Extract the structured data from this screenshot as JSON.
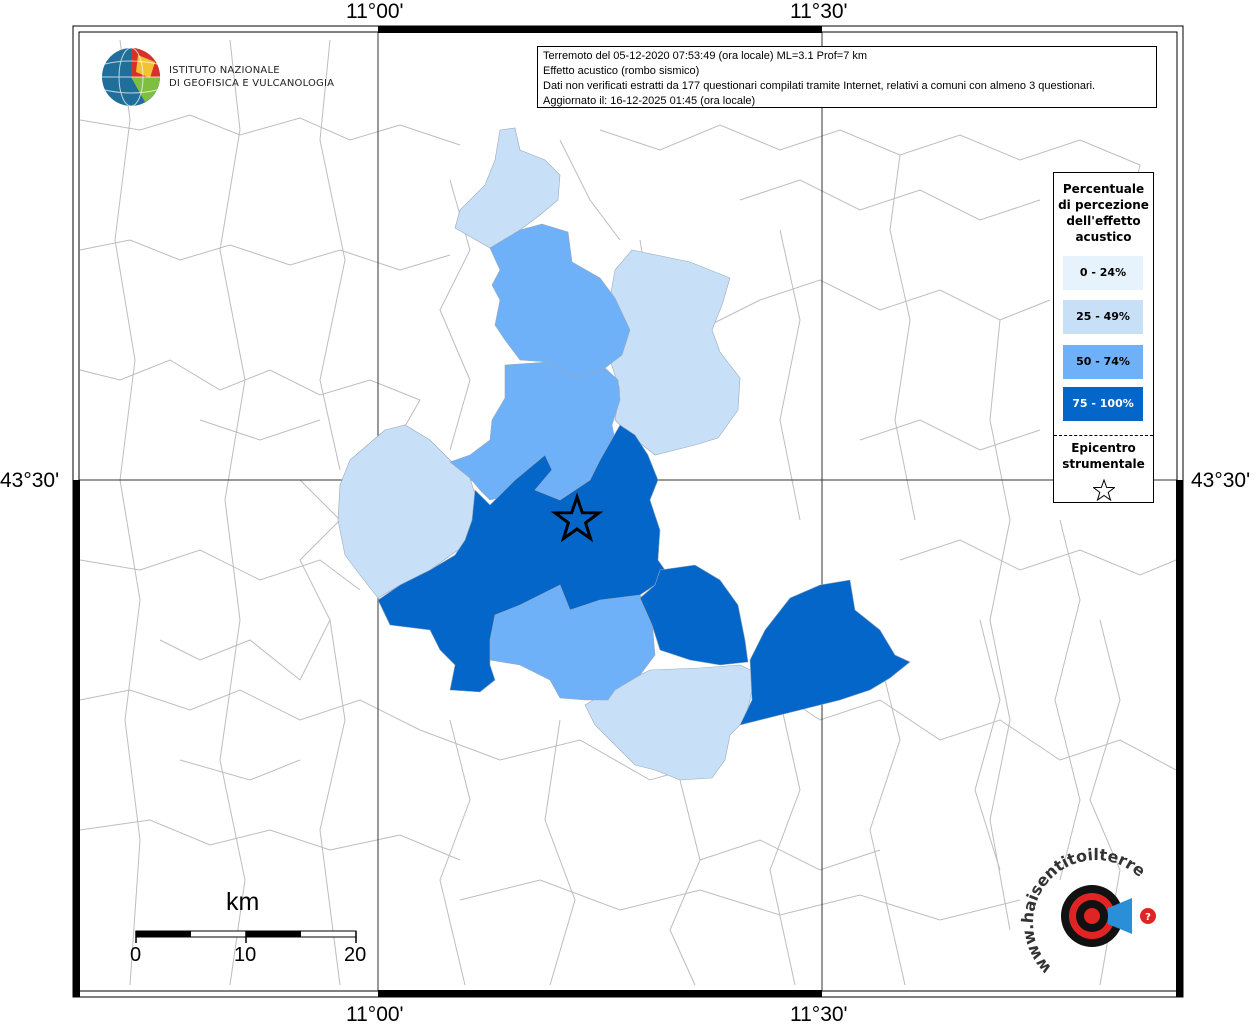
{
  "header": {
    "lines": [
      "Terremoto del 05-12-2020 07:53:49 (ora locale) ML=3.1 Prof=7 km",
      "Effetto acustico (rombo sismico)",
      "Dati non verificati estratti da 177 questionari compilati tramite Internet, relativi a comuni con almeno 3 questionari.",
      "Aggiornato il: 16-12-2025 01:45 (ora locale)"
    ]
  },
  "logo_ingv": {
    "line1": "ISTITUTO NAZIONALE",
    "line2": "DI GEOFISICA E VULCANOLOGIA"
  },
  "logo_haisentito": {
    "text": "haisentitoilterremoto.it",
    "prefix": "www."
  },
  "grid": {
    "lon_labels": [
      "11°00'",
      "11°30'"
    ],
    "lat_labels": [
      "43°30'"
    ]
  },
  "legend": {
    "title": [
      "Percentuale",
      "di percezione",
      "dell'effetto",
      "acustico"
    ],
    "classes": [
      {
        "label": "0 - 24%",
        "color": "#e6f2fc"
      },
      {
        "label": "25 - 49%",
        "color": "#c7e0f8"
      },
      {
        "label": "50 - 74%",
        "color": "#6eb1f8"
      },
      {
        "label": "75 - 100%",
        "color": "#0566c9"
      }
    ],
    "epicenter_label": [
      "Epicentro",
      "strumentale"
    ],
    "epicenter_icon": "star-outline-icon"
  },
  "scale_bar": {
    "unit": "km",
    "ticks": [
      "0",
      "10",
      "20"
    ]
  },
  "colors": {
    "boundary": "#bdbdbd",
    "grid": "#333333",
    "frame": "#000000"
  }
}
